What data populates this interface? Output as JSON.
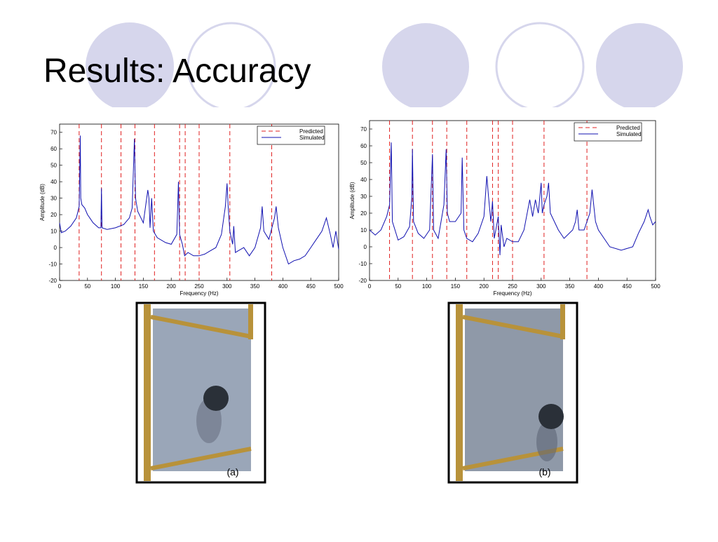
{
  "title": "Results: Accuracy",
  "images": [
    {
      "caption": "(a)"
    },
    {
      "caption": "(b)"
    }
  ],
  "chart_data": [
    {
      "type": "line",
      "xlabel": "Frequency (Hz)",
      "ylabel": "Amplitude (dB)",
      "xlim": [
        0,
        500
      ],
      "xticks": [
        0,
        50,
        100,
        150,
        200,
        250,
        300,
        350,
        400,
        450,
        500
      ],
      "ylim": [
        -20,
        75
      ],
      "yticks": [
        -20,
        -10,
        0,
        10,
        20,
        30,
        40,
        50,
        60,
        70
      ],
      "legend": "upper right",
      "series": [
        {
          "name": "Predicted",
          "color": "#e02020",
          "style": "dashed",
          "x": [
            35,
            75,
            110,
            135,
            170,
            215,
            225,
            250,
            305,
            380
          ]
        },
        {
          "name": "Simulated",
          "color": "#1010b0",
          "style": "solid",
          "x": [
            0,
            3,
            10,
            20,
            30,
            35,
            37,
            38,
            40,
            45,
            50,
            60,
            70,
            74,
            75,
            76,
            85,
            100,
            115,
            125,
            130,
            134,
            136,
            140,
            150,
            158,
            160,
            162,
            165,
            168,
            175,
            190,
            200,
            210,
            213,
            215,
            220,
            224,
            230,
            240,
            250,
            260,
            270,
            280,
            290,
            297,
            300,
            302,
            305,
            310,
            312,
            315,
            320,
            330,
            340,
            350,
            360,
            363,
            366,
            375,
            385,
            388,
            392,
            400,
            410,
            420,
            430,
            440,
            450,
            460,
            470,
            478,
            485,
            490,
            495,
            500
          ],
          "values": [
            15,
            9,
            10,
            13,
            18,
            25,
            68,
            30,
            26,
            24,
            20,
            15,
            12,
            12,
            36,
            12,
            11,
            12,
            14,
            18,
            24,
            66,
            30,
            22,
            15,
            35,
            30,
            12,
            30,
            10,
            6,
            3,
            2,
            8,
            40,
            8,
            2,
            -5,
            -3,
            -5,
            -5,
            -4,
            -2,
            0,
            8,
            25,
            39,
            25,
            10,
            2,
            13,
            -3,
            -2,
            0,
            -5,
            0,
            12,
            25,
            10,
            5,
            18,
            25,
            12,
            0,
            -10,
            -8,
            -7,
            -5,
            0,
            5,
            10,
            18,
            8,
            0,
            10,
            -1
          ]
        }
      ]
    },
    {
      "type": "line",
      "xlabel": "Frequency (Hz)",
      "ylabel": "Amplitude (dB)",
      "xlim": [
        0,
        500
      ],
      "xticks": [
        0,
        50,
        100,
        150,
        200,
        250,
        300,
        350,
        400,
        450,
        500
      ],
      "ylim": [
        -20,
        75
      ],
      "yticks": [
        -20,
        -10,
        0,
        10,
        20,
        30,
        40,
        50,
        60,
        70
      ],
      "legend": "upper right",
      "series": [
        {
          "name": "Predicted",
          "color": "#e02020",
          "style": "dashed",
          "x": [
            35,
            75,
            110,
            135,
            170,
            215,
            225,
            250,
            305,
            380
          ]
        },
        {
          "name": "Simulated",
          "color": "#1010b0",
          "style": "solid",
          "x": [
            0,
            10,
            20,
            30,
            35,
            38,
            40,
            50,
            60,
            70,
            74,
            75,
            77,
            85,
            95,
            105,
            110,
            112,
            120,
            125,
            130,
            134,
            136,
            140,
            150,
            160,
            162,
            165,
            170,
            180,
            190,
            200,
            205,
            208,
            212,
            215,
            218,
            225,
            228,
            230,
            235,
            240,
            250,
            260,
            270,
            280,
            285,
            290,
            295,
            300,
            302,
            305,
            310,
            313,
            316,
            330,
            340,
            355,
            360,
            363,
            366,
            375,
            385,
            389,
            395,
            400,
            420,
            440,
            460,
            470,
            480,
            487,
            490,
            495,
            500
          ],
          "values": [
            10,
            7,
            10,
            18,
            25,
            62,
            15,
            4,
            6,
            12,
            30,
            58,
            15,
            8,
            5,
            10,
            55,
            10,
            5,
            15,
            25,
            58,
            20,
            15,
            15,
            20,
            53,
            10,
            5,
            3,
            8,
            18,
            42,
            30,
            15,
            27,
            5,
            18,
            -5,
            13,
            0,
            5,
            3,
            3,
            10,
            28,
            18,
            28,
            20,
            38,
            20,
            25,
            30,
            38,
            20,
            10,
            5,
            10,
            15,
            22,
            10,
            10,
            20,
            34,
            15,
            10,
            0,
            -2,
            0,
            8,
            15,
            22,
            18,
            13,
            15
          ]
        }
      ]
    }
  ]
}
